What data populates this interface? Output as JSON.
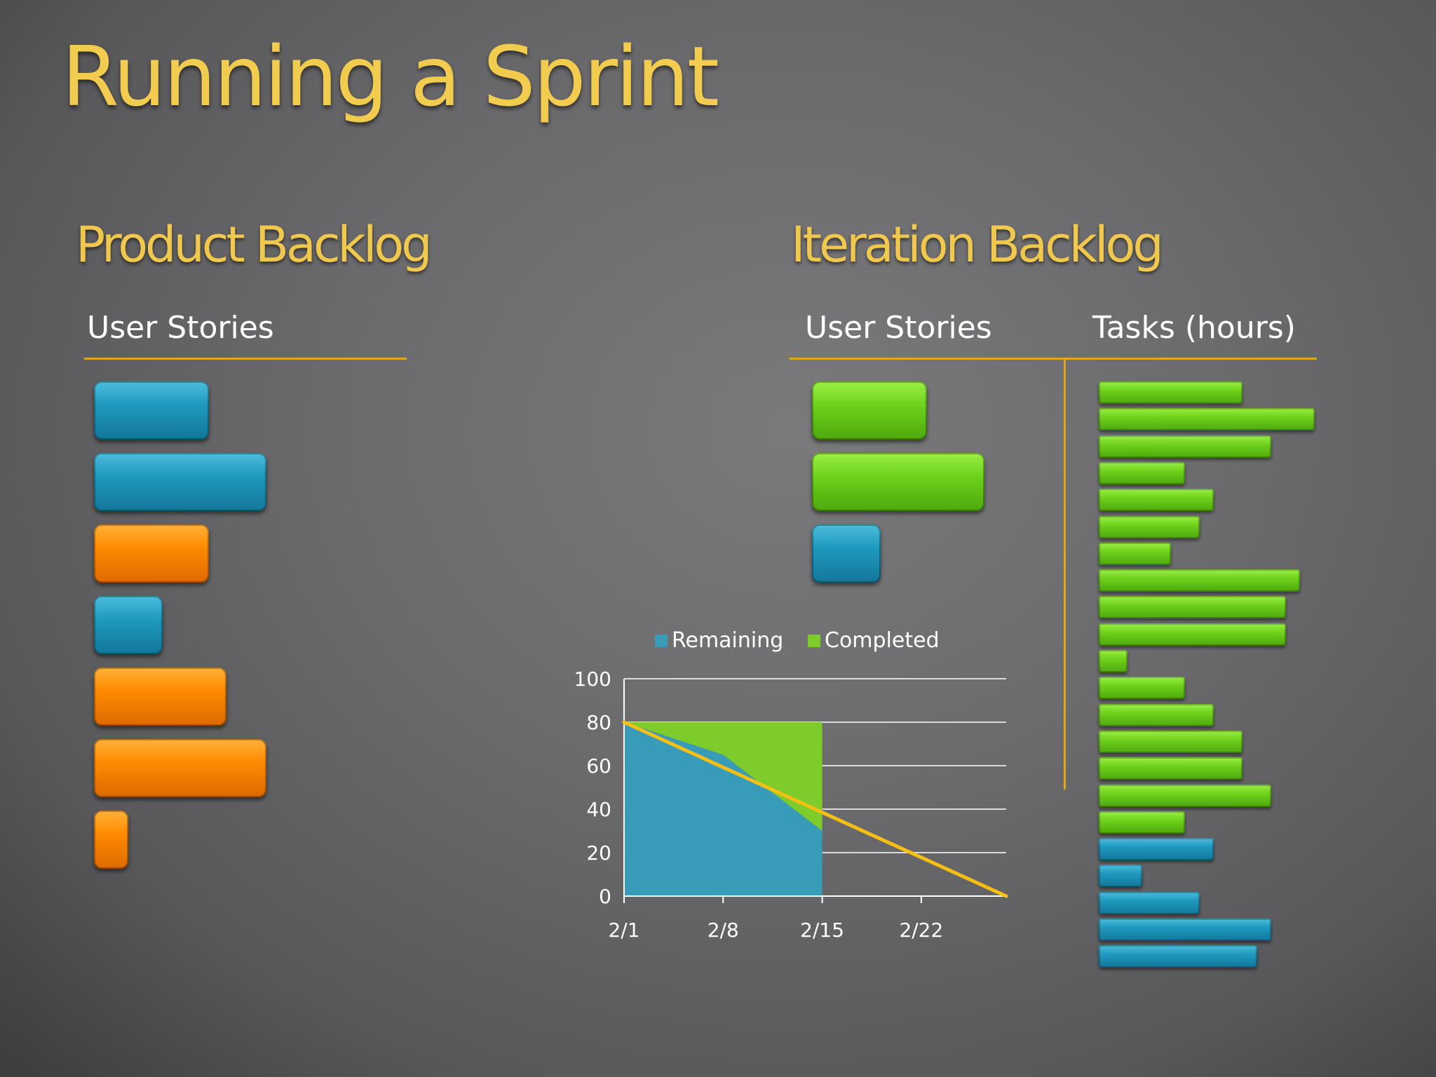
{
  "title": "Running a Sprint",
  "product_backlog": {
    "heading": "Product Backlog",
    "column_label": "User Stories",
    "stories": [
      {
        "color": "blue",
        "size": 2
      },
      {
        "color": "blue",
        "size": 3
      },
      {
        "color": "orange",
        "size": 2
      },
      {
        "color": "blue",
        "size": 1.2
      },
      {
        "color": "orange",
        "size": 2.3
      },
      {
        "color": "orange",
        "size": 3
      },
      {
        "color": "orange",
        "size": 0.6
      }
    ]
  },
  "iteration_backlog": {
    "heading": "Iteration Backlog",
    "stories_label": "User Stories",
    "tasks_label": "Tasks (hours)",
    "stories": [
      {
        "color": "green",
        "size": 2
      },
      {
        "color": "green",
        "size": 3
      },
      {
        "color": "blue",
        "size": 1.2
      }
    ],
    "tasks": [
      {
        "color": "green",
        "hours": 10
      },
      {
        "color": "green",
        "hours": 15
      },
      {
        "color": "green",
        "hours": 12
      },
      {
        "color": "green",
        "hours": 6
      },
      {
        "color": "green",
        "hours": 8
      },
      {
        "color": "green",
        "hours": 7
      },
      {
        "color": "green",
        "hours": 5
      },
      {
        "color": "green",
        "hours": 14
      },
      {
        "color": "green",
        "hours": 13
      },
      {
        "color": "green",
        "hours": 13
      },
      {
        "color": "green",
        "hours": 2
      },
      {
        "color": "green",
        "hours": 6
      },
      {
        "color": "green",
        "hours": 8
      },
      {
        "color": "green",
        "hours": 10
      },
      {
        "color": "green",
        "hours": 10
      },
      {
        "color": "green",
        "hours": 12
      },
      {
        "color": "green",
        "hours": 6
      },
      {
        "color": "blue",
        "hours": 8
      },
      {
        "color": "blue",
        "hours": 3
      },
      {
        "color": "blue",
        "hours": 7
      },
      {
        "color": "blue",
        "hours": 12
      },
      {
        "color": "blue",
        "hours": 11
      }
    ]
  },
  "colors": {
    "blue": "#1f99bf",
    "orange": "#ff8a00",
    "green": "#6fd21b",
    "accent": "#f0c84d",
    "rule": "#e3a51c",
    "remaining_area": "#389bb8",
    "completed_area": "#7ecb2c",
    "ideal_line": "#f5c013"
  },
  "chart_data": {
    "type": "area",
    "legend": [
      "Remaining",
      "Completed"
    ],
    "legend_position": "top",
    "ylim": [
      0,
      100
    ],
    "yticks": [
      0,
      20,
      40,
      60,
      80,
      100
    ],
    "x_tick_labels": [
      "2/1",
      "2/8",
      "2/15",
      "2/22"
    ],
    "x_days": [
      0,
      7,
      14,
      21
    ],
    "x_max_days": 27,
    "grid": true,
    "series": [
      {
        "name": "Remaining",
        "x_days": [
          0,
          7,
          14
        ],
        "values": [
          80,
          65,
          30
        ]
      },
      {
        "name": "Completed",
        "x_days": [
          0,
          7,
          14
        ],
        "values": [
          0,
          15,
          50
        ]
      }
    ],
    "ideal_line": {
      "x_days": [
        0,
        27
      ],
      "values": [
        80,
        0
      ]
    }
  }
}
